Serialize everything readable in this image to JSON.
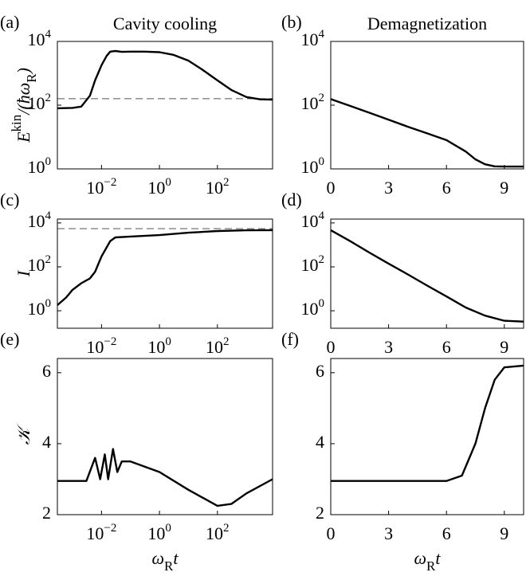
{
  "chart_data": [
    {
      "type": "line",
      "panel_label": "(a)",
      "title": "Cavity cooling",
      "ylabel": [
        {
          "text": "E",
          "pos": "base"
        },
        {
          "text": "kin",
          "pos": "sup"
        },
        {
          "text": "/(ħω",
          "pos": "base"
        },
        {
          "text": "R",
          "pos": "sub"
        },
        {
          "text": ")",
          "pos": "base"
        }
      ],
      "xscale": "log",
      "yscale": "log",
      "xlim": [
        0.0003,
        8000
      ],
      "ylim": [
        1,
        10000
      ],
      "xticks": [
        {
          "value": 0.01,
          "label": "10",
          "exponent": "−2"
        },
        {
          "value": 1,
          "label": "10",
          "exponent": "0"
        },
        {
          "value": 100,
          "label": "10",
          "exponent": "2"
        }
      ],
      "yticks": [
        {
          "value": 1,
          "label": "10",
          "exponent": "0"
        },
        {
          "value": 100,
          "label": "10",
          "exponent": "2"
        },
        {
          "value": 10000,
          "label": "10",
          "exponent": "4"
        }
      ],
      "x": [
        0.0003,
        0.001,
        0.002,
        0.004,
        0.006,
        0.01,
        0.015,
        0.02,
        0.03,
        0.05,
        0.1,
        0.3,
        1,
        3,
        10,
        30,
        100,
        300,
        1000,
        3000,
        8000
      ],
      "values": [
        80,
        82,
        90,
        200,
        600,
        1800,
        3500,
        4800,
        5000,
        4700,
        4800,
        4800,
        4600,
        3800,
        2500,
        1300,
        600,
        300,
        180,
        152,
        150
      ],
      "color": "#000000",
      "hline": 160,
      "hline_style": "dashed"
    },
    {
      "type": "line",
      "panel_label": "(b)",
      "title": "Demagnetization",
      "xscale": "linear",
      "yscale": "log",
      "xlim": [
        0,
        10
      ],
      "ylim": [
        1,
        10000
      ],
      "xticks": [
        0,
        3,
        6,
        9
      ],
      "yticks": [
        {
          "value": 1,
          "label": "10",
          "exponent": "0"
        },
        {
          "value": 100,
          "label": "10",
          "exponent": "2"
        },
        {
          "value": 10000,
          "label": "10",
          "exponent": "4"
        }
      ],
      "x": [
        0,
        1,
        2,
        3,
        4,
        5,
        6,
        7,
        7.5,
        8,
        8.5,
        9,
        10
      ],
      "values": [
        155,
        95,
        58,
        35,
        21,
        13,
        8,
        3.5,
        2,
        1.4,
        1.2,
        1.18,
        1.18
      ],
      "color": "#000000"
    },
    {
      "type": "line",
      "panel_label": "(c)",
      "ylabel": [
        {
          "text": "I",
          "pos": "base"
        }
      ],
      "xscale": "log",
      "yscale": "log",
      "xlim": [
        0.0003,
        8000
      ],
      "ylim": [
        0.16,
        15000
      ],
      "xticks": [
        {
          "value": 0.01,
          "label": "10",
          "exponent": "−2"
        },
        {
          "value": 1,
          "label": "10",
          "exponent": "0"
        },
        {
          "value": 100,
          "label": "10",
          "exponent": "2"
        }
      ],
      "yticks": [
        {
          "value": 1,
          "label": "10",
          "exponent": "0"
        },
        {
          "value": 100,
          "label": "10",
          "exponent": "2"
        },
        {
          "value": 10000,
          "label": "10",
          "exponent": "4"
        }
      ],
      "x": [
        0.0003,
        0.0006,
        0.001,
        0.002,
        0.004,
        0.006,
        0.01,
        0.02,
        0.03,
        0.1,
        1,
        10,
        100,
        1000,
        8000
      ],
      "values": [
        1.8,
        4,
        9,
        18,
        30,
        60,
        300,
        1500,
        2200,
        2400,
        2800,
        3600,
        4300,
        4600,
        4700
      ],
      "color": "#000000",
      "hline": 5500,
      "hline_style": "dashed"
    },
    {
      "type": "line",
      "panel_label": "(d)",
      "xscale": "linear",
      "yscale": "log",
      "xlim": [
        0,
        10
      ],
      "ylim": [
        0.16,
        15000
      ],
      "xticks": [
        0,
        3,
        6,
        9
      ],
      "yticks": [
        {
          "value": 1,
          "label": "10",
          "exponent": "0"
        },
        {
          "value": 100,
          "label": "10",
          "exponent": "2"
        },
        {
          "value": 10000,
          "label": "10",
          "exponent": "4"
        }
      ],
      "x": [
        0,
        1,
        2,
        3,
        4,
        5,
        6,
        7,
        8,
        9,
        10
      ],
      "values": [
        4700,
        1500,
        450,
        140,
        45,
        14,
        4.5,
        1.4,
        0.6,
        0.35,
        0.32
      ],
      "color": "#000000"
    },
    {
      "type": "line",
      "panel_label": "(e)",
      "ylabel": [
        {
          "text": "𝒦",
          "pos": "base"
        }
      ],
      "xlabel": [
        {
          "text": "ω",
          "pos": "base"
        },
        {
          "text": "R",
          "pos": "sub"
        },
        {
          "text": "t",
          "pos": "base"
        }
      ],
      "xscale": "log",
      "yscale": "linear",
      "xlim": [
        0.0003,
        8000
      ],
      "ylim": [
        2,
        6.4
      ],
      "xticks": [
        {
          "value": 0.01,
          "label": "10",
          "exponent": "−2"
        },
        {
          "value": 1,
          "label": "10",
          "exponent": "0"
        },
        {
          "value": 100,
          "label": "10",
          "exponent": "2"
        }
      ],
      "yticks": [
        2,
        4,
        6
      ],
      "x": [
        0.0003,
        0.003,
        0.006,
        0.009,
        0.013,
        0.017,
        0.025,
        0.035,
        0.05,
        0.1,
        1,
        10,
        100,
        300,
        1000,
        8000
      ],
      "values": [
        2.95,
        2.95,
        3.6,
        3.0,
        3.7,
        3.0,
        3.85,
        3.2,
        3.5,
        3.5,
        3.2,
        2.7,
        2.25,
        2.3,
        2.6,
        3.0
      ],
      "color": "#000000"
    },
    {
      "type": "line",
      "panel_label": "(f)",
      "xlabel": [
        {
          "text": "ω",
          "pos": "base"
        },
        {
          "text": "R",
          "pos": "sub"
        },
        {
          "text": "t",
          "pos": "base"
        }
      ],
      "xscale": "linear",
      "yscale": "linear",
      "xlim": [
        0,
        10
      ],
      "ylim": [
        2,
        6.4
      ],
      "xticks": [
        0,
        3,
        6,
        9
      ],
      "yticks": [
        2,
        4,
        6
      ],
      "x": [
        0,
        6,
        6.8,
        7.5,
        8,
        8.5,
        9,
        10
      ],
      "values": [
        2.95,
        2.95,
        3.1,
        4,
        5,
        5.8,
        6.15,
        6.2
      ],
      "color": "#000000"
    }
  ]
}
